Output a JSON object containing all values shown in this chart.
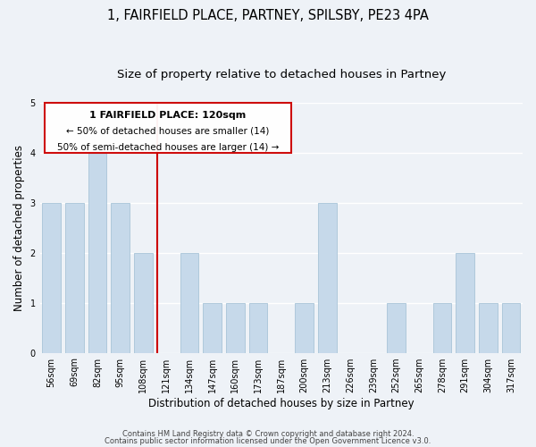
{
  "title": "1, FAIRFIELD PLACE, PARTNEY, SPILSBY, PE23 4PA",
  "subtitle": "Size of property relative to detached houses in Partney",
  "xlabel": "Distribution of detached houses by size in Partney",
  "ylabel": "Number of detached properties",
  "categories": [
    "56sqm",
    "69sqm",
    "82sqm",
    "95sqm",
    "108sqm",
    "121sqm",
    "134sqm",
    "147sqm",
    "160sqm",
    "173sqm",
    "187sqm",
    "200sqm",
    "213sqm",
    "226sqm",
    "239sqm",
    "252sqm",
    "265sqm",
    "278sqm",
    "291sqm",
    "304sqm",
    "317sqm"
  ],
  "values": [
    3,
    3,
    4,
    3,
    2,
    0,
    2,
    1,
    1,
    1,
    0,
    1,
    3,
    0,
    0,
    1,
    0,
    1,
    2,
    1,
    1
  ],
  "bar_color": "#c6d9ea",
  "bar_edge_color": "#a8c4d8",
  "vline_index": 5,
  "vline_color": "#cc0000",
  "annotation_line1": "1 FAIRFIELD PLACE: 120sqm",
  "annotation_line2": "← 50% of detached houses are smaller (14)",
  "annotation_line3": "50% of semi-detached houses are larger (14) →",
  "ylim": [
    0,
    5
  ],
  "yticks": [
    0,
    1,
    2,
    3,
    4,
    5
  ],
  "footer_line1": "Contains HM Land Registry data © Crown copyright and database right 2024.",
  "footer_line2": "Contains public sector information licensed under the Open Government Licence v3.0.",
  "background_color": "#eef2f7",
  "grid_color": "#ffffff",
  "title_fontsize": 10.5,
  "subtitle_fontsize": 9.5,
  "tick_fontsize": 7,
  "ylabel_fontsize": 8.5,
  "xlabel_fontsize": 8.5,
  "annotation_fontsize_title": 8,
  "annotation_fontsize_body": 7.5
}
